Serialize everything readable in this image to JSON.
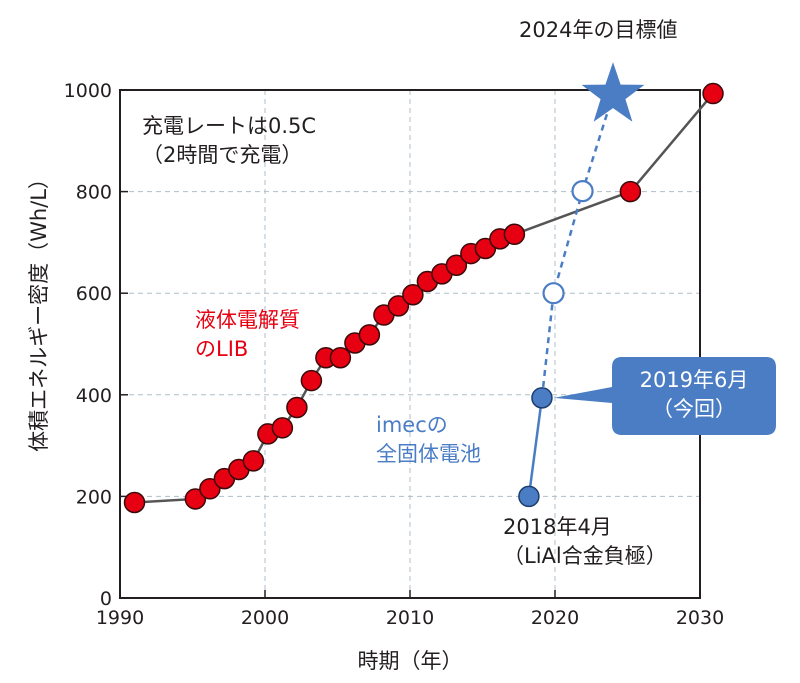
{
  "chart_data": {
    "type": "line",
    "xlabel": "時期（年）",
    "ylabel": "体積エネルギー密度（Wh/L）",
    "xlim": [
      1990,
      2030
    ],
    "ylim": [
      0,
      1000
    ],
    "x_ticks": [
      "1990",
      "2000",
      "2010",
      "2020",
      "2030"
    ],
    "y_ticks": [
      "0",
      "200",
      "400",
      "600",
      "800",
      "1000"
    ],
    "grid": true,
    "series": [
      {
        "name": "液体電解質のLIB",
        "color": "#e60012",
        "points": [
          [
            1991,
            188
          ],
          [
            1995.2,
            195
          ],
          [
            1996.2,
            215
          ],
          [
            1997.2,
            235
          ],
          [
            1998.2,
            253
          ],
          [
            1999.2,
            270
          ],
          [
            2000.2,
            323
          ],
          [
            2001.2,
            335
          ],
          [
            2002.2,
            375
          ],
          [
            2003.2,
            428
          ],
          [
            2004.2,
            473
          ],
          [
            2005.2,
            473
          ],
          [
            2006.2,
            502
          ],
          [
            2007.2,
            518
          ],
          [
            2008.2,
            557
          ],
          [
            2009.2,
            575
          ],
          [
            2010.2,
            597
          ],
          [
            2011.2,
            623
          ],
          [
            2012.2,
            638
          ],
          [
            2013.2,
            655
          ],
          [
            2014.2,
            678
          ],
          [
            2015.2,
            688
          ],
          [
            2016.2,
            707
          ],
          [
            2017.2,
            716
          ],
          [
            2025.2,
            800
          ],
          [
            2030.9,
            993
          ]
        ]
      },
      {
        "name": "imecの全固体電池",
        "color": "#4a7dc4",
        "points_filled": [
          [
            2018.2,
            200
          ],
          [
            2019.1,
            394
          ]
        ],
        "points_open": [
          [
            2019.9,
            600
          ],
          [
            2021.9,
            801
          ]
        ],
        "target": [
          2024.0,
          990
        ]
      }
    ],
    "annotations": {
      "charge_rate_line1": "充電レートは0.5C",
      "charge_rate_line2": "（2時間で充電）",
      "lib_line1": "液体電解質",
      "lib_line2": "のLIB",
      "imec_line1": "imecの",
      "imec_line2": "全固体電池",
      "target": "2024年の目標値",
      "callout_line1": "2019年6月",
      "callout_line2": "（今回）",
      "first_line1": "2018年4月",
      "first_line2": "（LiAl合金負極）"
    }
  }
}
